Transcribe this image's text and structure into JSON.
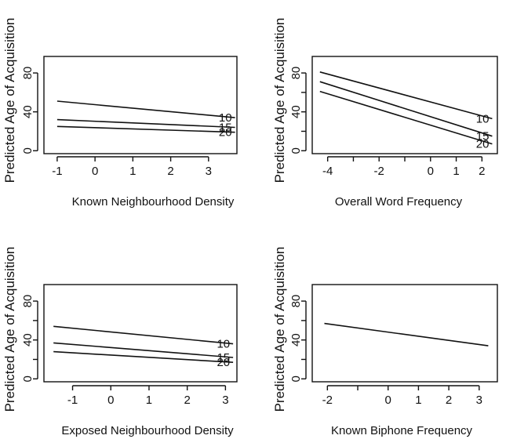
{
  "chart_data": [
    {
      "type": "line",
      "xlabel": "Known Neighbourhood Density",
      "ylabel": "Predicted Age of Acquisition",
      "xlim": [
        -1.35,
        3.75
      ],
      "ylim": [
        -3,
        97
      ],
      "xticks": [
        -1,
        0,
        1,
        2,
        3
      ],
      "yticks": [
        0,
        40,
        80
      ],
      "ytick_labels": [
        0,
        40,
        80
      ],
      "series": [
        {
          "name": "10",
          "x": [
            -1,
            3.7
          ],
          "y": [
            51,
            34
          ]
        },
        {
          "name": "15",
          "x": [
            -1,
            3.7
          ],
          "y": [
            32,
            24
          ]
        },
        {
          "name": "20",
          "x": [
            -1,
            3.7
          ],
          "y": [
            25,
            19
          ]
        }
      ]
    },
    {
      "type": "line",
      "xlabel": "Overall Word Frequency",
      "ylabel": "Predicted Age of Acquisition",
      "xlim": [
        -4.6,
        2.6
      ],
      "ylim": [
        -3,
        97
      ],
      "xticks": [
        -4,
        -3,
        -2,
        -1,
        0,
        1,
        2
      ],
      "xtick_labels": [
        "-4",
        "",
        "-2",
        "",
        "0",
        "1",
        "2"
      ],
      "yticks": [
        0,
        20,
        40,
        60,
        80
      ],
      "ytick_labels": [
        "0",
        "",
        "40",
        "",
        "80"
      ],
      "series": [
        {
          "name": "10",
          "x": [
            -4.3,
            2.4
          ],
          "y": [
            81,
            33
          ]
        },
        {
          "name": "15",
          "x": [
            -4.3,
            2.4
          ],
          "y": [
            71,
            15
          ]
        },
        {
          "name": "20",
          "x": [
            -4.3,
            2.4
          ],
          "y": [
            61,
            7
          ]
        }
      ]
    },
    {
      "type": "line",
      "xlabel": "Exposed Neighbourhood Density",
      "ylabel": "Predicted Age of Acquisition",
      "xlim": [
        -1.75,
        3.3
      ],
      "ylim": [
        -3,
        97
      ],
      "xticks": [
        -1,
        0,
        1,
        2,
        3
      ],
      "yticks": [
        0,
        20,
        40,
        60,
        80
      ],
      "ytick_labels": [
        "0",
        "",
        "40",
        "",
        "80"
      ],
      "series": [
        {
          "name": "10",
          "x": [
            -1.5,
            3.2
          ],
          "y": [
            54,
            36
          ]
        },
        {
          "name": "15",
          "x": [
            -1.5,
            3.2
          ],
          "y": [
            37,
            22
          ]
        },
        {
          "name": "20",
          "x": [
            -1.5,
            3.2
          ],
          "y": [
            28,
            17
          ]
        }
      ]
    },
    {
      "type": "line",
      "xlabel": "Known Biphone Frequency",
      "ylabel": "Predicted Age of Acquisition",
      "xlim": [
        -2.5,
        3.6
      ],
      "ylim": [
        -3,
        97
      ],
      "xticks": [
        -2,
        -1,
        0,
        1,
        2,
        3
      ],
      "xtick_labels": [
        "-2",
        "",
        "0",
        "1",
        "2",
        "3"
      ],
      "yticks": [
        0,
        20,
        40,
        60,
        80
      ],
      "ytick_labels": [
        "0",
        "",
        "40",
        "",
        "80"
      ],
      "series": [
        {
          "name": "",
          "x": [
            -2.1,
            3.3
          ],
          "y": [
            57,
            34
          ]
        }
      ]
    }
  ]
}
